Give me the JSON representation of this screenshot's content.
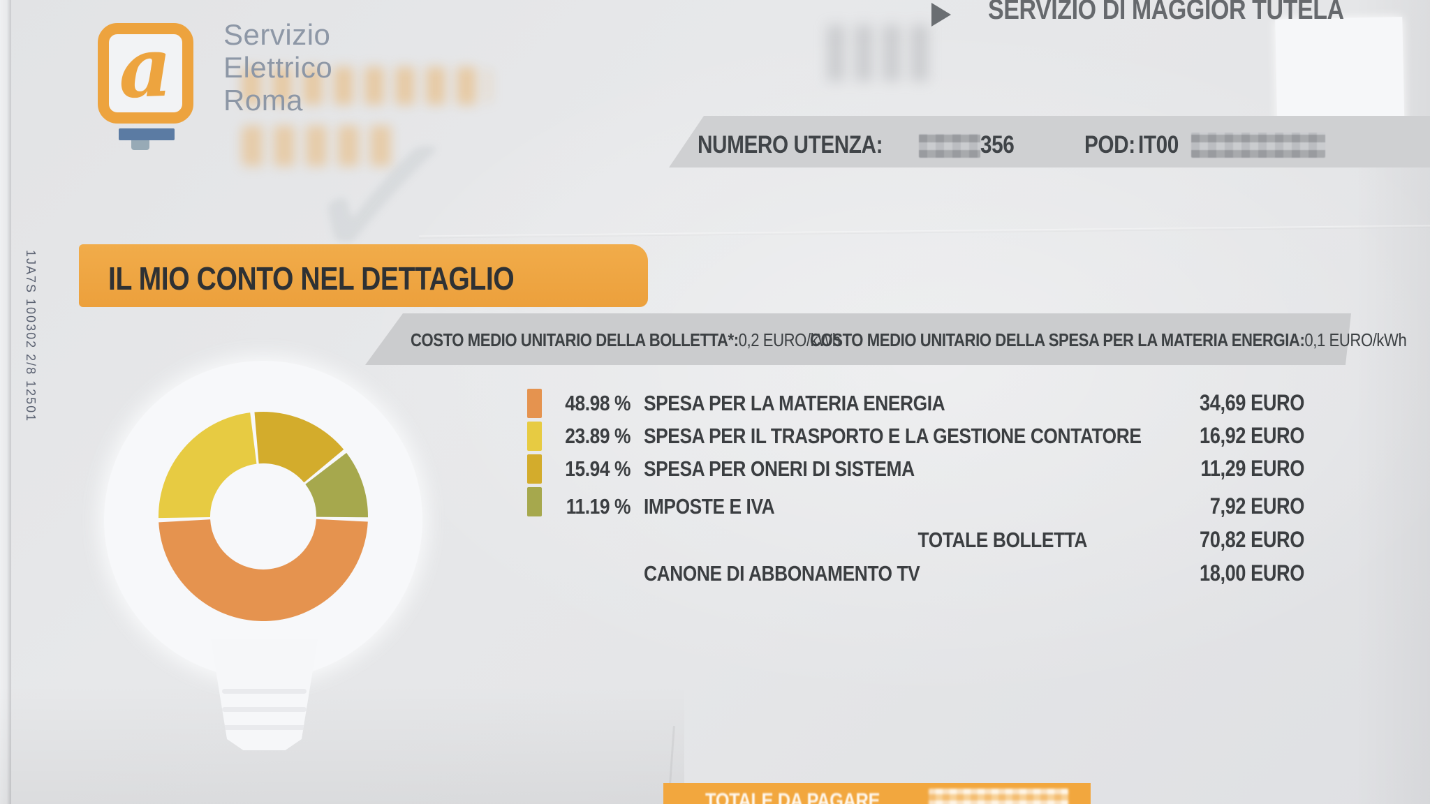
{
  "page": {
    "vertical_code": "1JA7S 100302 2/8 12501"
  },
  "header": {
    "logo_letter": "a",
    "brand_line1": "Servizio",
    "brand_line2": "Elettrico",
    "brand_line3": "Roma",
    "service_type": "SERVIZIO DI MAGGIOR TUTELA",
    "numero_utenza_label": "NUMERO UTENZA:",
    "numero_utenza_visible_digits": "356",
    "pod_label": "POD:",
    "pod_visible_value": "IT00"
  },
  "section": {
    "title": "IL MIO CONTO NEL DETTAGLIO",
    "unit_cost_1_label": "COSTO MEDIO UNITARIO DELLA BOLLETTA*:",
    "unit_cost_1_value": "0,2 EURO/kWh",
    "unit_cost_2_label": "COSTO MEDIO UNITARIO DELLA SPESA PER LA MATERIA ENERGIA:",
    "unit_cost_2_value": "0,1 EURO/kWh"
  },
  "chart_data": {
    "type": "pie",
    "donut": true,
    "title": "IL MIO CONTO NEL DETTAGLIO",
    "labels": [
      "SPESA PER LA MATERIA ENERGIA",
      "SPESA PER IL TRASPORTO E LA GESTIONE CONTATORE",
      "SPESA PER ONERI DI SISTEMA",
      "IMPOSTE E IVA"
    ],
    "values_pct": [
      48.98,
      23.89,
      15.94,
      11.19
    ],
    "values_eur": [
      34.69,
      16.92,
      11.29,
      7.92
    ],
    "colors": [
      "#e5934f",
      "#e7cb42",
      "#d3ac2c",
      "#a6a84d"
    ],
    "start_angle_deg": 268,
    "render_order": [
      1,
      2,
      3,
      0
    ],
    "gap_deg": 2.4,
    "legend_position": "right"
  },
  "breakdown": {
    "rows": [
      {
        "pct": "48.98 %",
        "label": "SPESA PER LA MATERIA ENERGIA",
        "amount": "34,69 EURO"
      },
      {
        "pct": "23.89 %",
        "label": "SPESA PER IL TRASPORTO E LA GESTIONE CONTATORE",
        "amount": "16,92 EURO"
      },
      {
        "pct": "15.94 %",
        "label": "SPESA PER ONERI DI SISTEMA",
        "amount": "11,29 EURO"
      },
      {
        "pct": "11.19 %",
        "label": "IMPOSTE E IVA",
        "amount": "7,92 EURO"
      }
    ],
    "total_label": "TOTALE BOLLETTA",
    "total_amount": "70,82 EURO",
    "canone_label": "CANONE DI ABBONAMENTO TV",
    "canone_amount": "18,00 EURO"
  },
  "footer": {
    "total_due_label": "TOTALE DA PAGARE"
  }
}
